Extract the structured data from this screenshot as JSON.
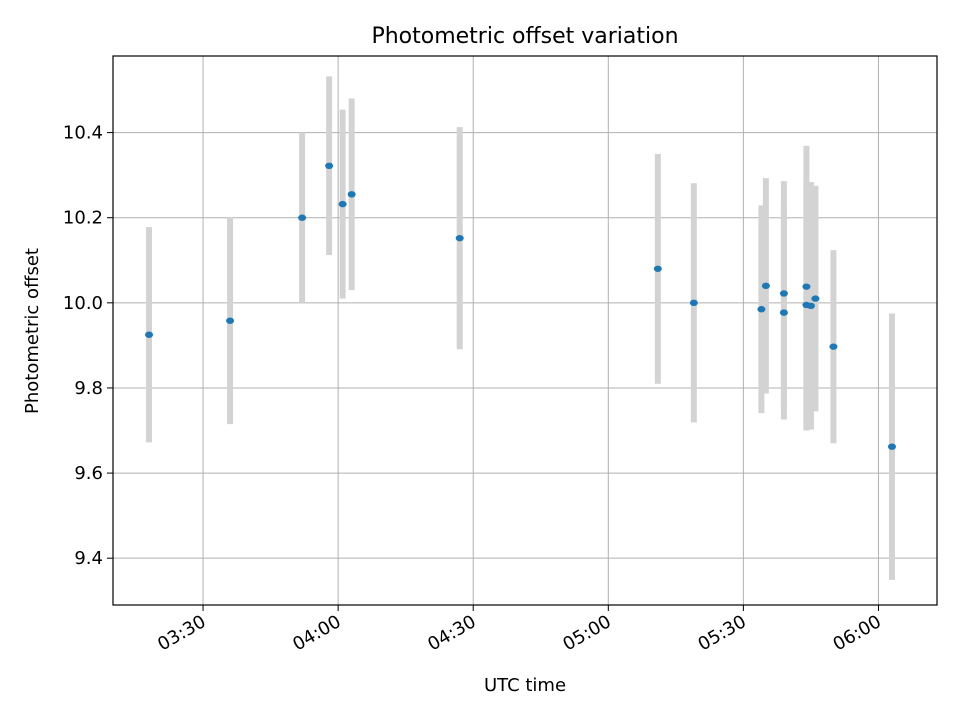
{
  "chart_data": {
    "type": "scatter",
    "title": "Photometric offset variation",
    "xlabel": "UTC time",
    "ylabel": "Photometric offset",
    "x_axis_kind": "time",
    "xlim": [
      "03:10",
      "06:13"
    ],
    "ylim": [
      9.29,
      10.58
    ],
    "x_ticks": [
      "03:30",
      "04:00",
      "04:30",
      "05:00",
      "05:30",
      "06:00"
    ],
    "y_ticks": [
      "9.4",
      "9.6",
      "9.8",
      "10.0",
      "10.2",
      "10.4"
    ],
    "grid": true,
    "colors": {
      "points": "#1f77b4",
      "errorbars": "#d3d3d3",
      "grid": "#b0b0b0"
    },
    "series": [
      {
        "points": [
          {
            "t": "03:18",
            "y": 9.925,
            "err": 0.253
          },
          {
            "t": "03:36",
            "y": 9.958,
            "err": 0.243
          },
          {
            "t": "03:52",
            "y": 10.2,
            "err": 0.2
          },
          {
            "t": "03:58",
            "y": 10.322,
            "err": 0.21
          },
          {
            "t": "04:01",
            "y": 10.232,
            "err": 0.222
          },
          {
            "t": "04:03",
            "y": 10.255,
            "err": 0.225
          },
          {
            "t": "04:27",
            "y": 10.152,
            "err": 0.261
          },
          {
            "t": "05:11",
            "y": 10.08,
            "err": 0.27
          },
          {
            "t": "05:19",
            "y": 10.0,
            "err": 0.281
          },
          {
            "t": "05:34",
            "y": 9.985,
            "err": 0.244
          },
          {
            "t": "05:35",
            "y": 10.04,
            "err": 0.253
          },
          {
            "t": "05:39",
            "y": 10.022,
            "err": 0.264
          },
          {
            "t": "05:39",
            "y": 9.977,
            "err": 0.251
          },
          {
            "t": "05:44",
            "y": 10.038,
            "err": 0.331
          },
          {
            "t": "05:44",
            "y": 9.995,
            "err": 0.295
          },
          {
            "t": "05:45",
            "y": 9.993,
            "err": 0.291
          },
          {
            "t": "05:46",
            "y": 10.01,
            "err": 0.265
          },
          {
            "t": "05:50",
            "y": 9.897,
            "err": 0.227
          },
          {
            "t": "06:03",
            "y": 9.662,
            "err": 0.313
          }
        ]
      }
    ]
  }
}
